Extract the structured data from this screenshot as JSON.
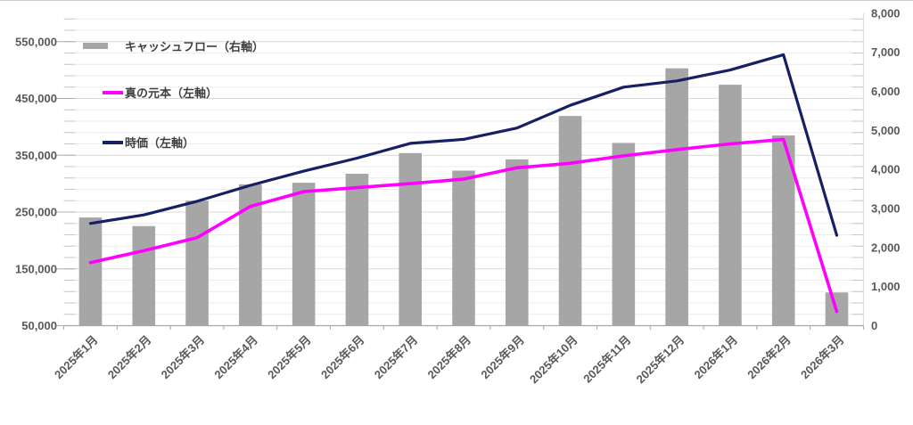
{
  "chart_data": {
    "type": "combo-bar-line",
    "title": "",
    "categories": [
      "2025年1月",
      "2025年2月",
      "2025年3月",
      "2025年4月",
      "2025年5月",
      "2025年6月",
      "2025年7月",
      "2025年8月",
      "2025年9月",
      "2025年10月",
      "2025年11月",
      "2025年12月",
      "2026年1月",
      "2026年2月",
      "2026年3月"
    ],
    "series": [
      {
        "name": "キャッシュフロー（右軸）",
        "type": "bar",
        "axis": "right",
        "color": "#a6a6a6",
        "values": [
          2770,
          2550,
          3200,
          3620,
          3660,
          3890,
          4420,
          3970,
          4260,
          5370,
          4680,
          6590,
          6170,
          4870,
          850
        ]
      },
      {
        "name": "真の元本（左軸）",
        "type": "line",
        "axis": "left",
        "color": "#ff00ff",
        "values": [
          161000,
          182000,
          205000,
          260000,
          286000,
          293000,
          300000,
          308000,
          328000,
          336000,
          349000,
          360000,
          370000,
          378000,
          75000
        ]
      },
      {
        "name": "時価（左軸）",
        "type": "line",
        "axis": "left",
        "color": "#152065",
        "values": [
          230000,
          245000,
          269000,
          297000,
          322000,
          345000,
          371000,
          378000,
          398000,
          438000,
          470000,
          481000,
          500000,
          527000,
          209000
        ]
      }
    ],
    "left_axis": {
      "min": 50000,
      "max": 600000,
      "major": 100000,
      "minor": 20000,
      "tick_labels": [
        "50,000",
        "150,000",
        "250,000",
        "350,000",
        "450,000",
        "550,000"
      ]
    },
    "right_axis": {
      "min": 0,
      "max": 8000,
      "major": 1000,
      "tick_labels": [
        "0",
        "1,000",
        "2,000",
        "3,000",
        "4,000",
        "5,000",
        "6,000",
        "7,000",
        "8,000"
      ]
    },
    "legend_position": "inside-top-left",
    "grid": {
      "major": true,
      "minor": true
    },
    "colors": {
      "background": "#ffffff",
      "major_grid": "#d9d9d9",
      "minor_grid": "#ececec",
      "tick_dash": "#c9c9c9",
      "major_tick": "#adadad",
      "x_axis_line": "#a6a6a6",
      "label_text": "#595959",
      "legend_text": "#3f3f3f",
      "chart_border": "#cfcfcf"
    }
  }
}
